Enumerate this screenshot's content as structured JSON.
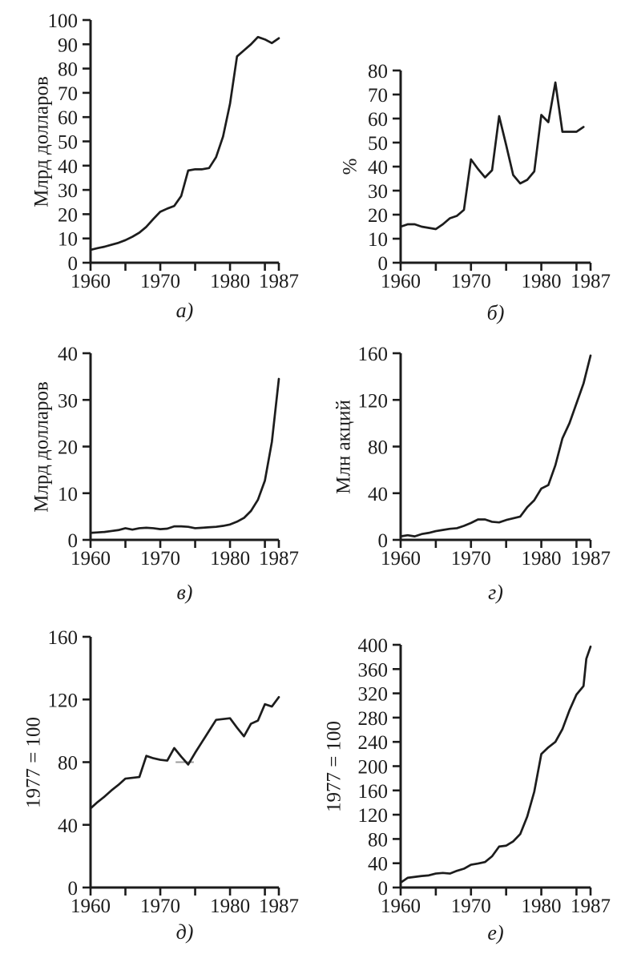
{
  "style": {
    "ink": "#1c1c1c",
    "background": "#ffffff",
    "annotation_gray": "#9b9b9b"
  },
  "chart_data": [
    {
      "id": "a",
      "type": "line",
      "label": "а)",
      "ylabel": "Млрд долларов",
      "grid": false,
      "legend": "none",
      "xlim": [
        1960,
        1987
      ],
      "ylim": [
        0,
        100
      ],
      "yticks": [
        0,
        10,
        20,
        30,
        40,
        50,
        60,
        70,
        80,
        90,
        100
      ],
      "xticks_major": [
        1960,
        1970,
        1980,
        1987
      ],
      "xticks_minor": [
        1965,
        1975,
        1985
      ],
      "x": [
        1960,
        1961,
        1962,
        1963,
        1964,
        1965,
        1966,
        1967,
        1968,
        1969,
        1970,
        1971,
        1972,
        1973,
        1974,
        1975,
        1976,
        1977,
        1978,
        1979,
        1980,
        1981,
        1982,
        1983,
        1984,
        1985,
        1986,
        1987
      ],
      "values": [
        5.3,
        6,
        6.6,
        7.4,
        8.2,
        9.3,
        10.7,
        12.4,
        14.8,
        18,
        21,
        22.3,
        23.4,
        27.5,
        38,
        38.5,
        38.5,
        39,
        43.5,
        52,
        65.5,
        85,
        87.5,
        90,
        93,
        92,
        90.5,
        92.5
      ]
    },
    {
      "id": "b",
      "type": "line",
      "label": "б)",
      "ylabel": "%",
      "grid": false,
      "legend": "none",
      "xlim": [
        1960,
        1987
      ],
      "ylim": [
        0,
        80
      ],
      "yticks": [
        0,
        10,
        20,
        30,
        40,
        50,
        60,
        70,
        80
      ],
      "xticks_major": [
        1960,
        1970,
        1980,
        1987
      ],
      "xticks_minor": [
        1965,
        1975,
        1985
      ],
      "x": [
        1960,
        1961,
        1962,
        1963,
        1964,
        1965,
        1966,
        1967,
        1968,
        1969,
        1970,
        1971,
        1972,
        1973,
        1974,
        1975,
        1976,
        1977,
        1978,
        1979,
        1980,
        1981,
        1982,
        1983,
        1984,
        1985,
        1986
      ],
      "values": [
        15,
        16,
        16,
        15,
        14.5,
        14,
        16,
        18.5,
        19.5,
        22,
        43,
        39,
        35.5,
        38.5,
        61,
        49,
        36.5,
        33,
        34.5,
        38,
        61.5,
        58.5,
        75,
        54.5,
        54.5,
        54.5,
        56.5
      ]
    },
    {
      "id": "v",
      "type": "line",
      "label": "в)",
      "ylabel": "Млрд долларов",
      "grid": false,
      "legend": "none",
      "xlim": [
        1960,
        1987
      ],
      "ylim": [
        0,
        40
      ],
      "yticks": [
        0,
        10,
        20,
        30,
        40
      ],
      "xticks_major": [
        1960,
        1970,
        1980,
        1987
      ],
      "xticks_minor": [
        1965,
        1975,
        1985
      ],
      "x": [
        1960,
        1961,
        1962,
        1963,
        1964,
        1965,
        1966,
        1967,
        1968,
        1969,
        1970,
        1971,
        1972,
        1973,
        1974,
        1975,
        1976,
        1977,
        1978,
        1979,
        1980,
        1981,
        1982,
        1983,
        1984,
        1985,
        1986,
        1987
      ],
      "values": [
        1.5,
        1.6,
        1.7,
        1.9,
        2.1,
        2.5,
        2.2,
        2.5,
        2.6,
        2.5,
        2.3,
        2.4,
        2.9,
        2.9,
        2.8,
        2.5,
        2.6,
        2.7,
        2.8,
        3,
        3.3,
        3.9,
        4.7,
        6.2,
        8.6,
        12.7,
        21,
        34.5
      ]
    },
    {
      "id": "g",
      "type": "line",
      "label": "г)",
      "ylabel": "Млн акций",
      "grid": false,
      "legend": "none",
      "xlim": [
        1960,
        1987
      ],
      "ylim": [
        0,
        160
      ],
      "yticks": [
        0,
        40,
        80,
        120,
        160
      ],
      "xticks_major": [
        1960,
        1970,
        1980,
        1987
      ],
      "xticks_minor": [
        1965,
        1975,
        1985
      ],
      "x": [
        1960,
        1961,
        1962,
        1963,
        1964,
        1965,
        1966,
        1967,
        1968,
        1969,
        1970,
        1971,
        1972,
        1973,
        1974,
        1975,
        1976,
        1977,
        1978,
        1979,
        1980,
        1981,
        1982,
        1983,
        1984,
        1985,
        1986,
        1987
      ],
      "values": [
        3,
        4,
        3,
        5,
        6,
        7.5,
        8.5,
        9.5,
        10,
        12,
        14.5,
        17.5,
        17.5,
        15.5,
        15,
        17,
        18.5,
        20,
        28,
        34,
        44,
        47,
        64,
        87,
        100,
        117,
        134,
        158
      ]
    },
    {
      "id": "d",
      "type": "line",
      "label": "д)",
      "ylabel": "1977 = 100",
      "grid": false,
      "legend": "none",
      "xlim": [
        1960,
        1987
      ],
      "ylim": [
        0,
        160
      ],
      "yticks": [
        0,
        40,
        80,
        120,
        160
      ],
      "xticks_major": [
        1960,
        1970,
        1980,
        1987
      ],
      "xticks_minor": [
        1965,
        1975,
        1985
      ],
      "x": [
        1960,
        1961,
        1962,
        1963,
        1964,
        1965,
        1966,
        1967,
        1968,
        1969,
        1970,
        1971,
        1972,
        1973,
        1974,
        1975,
        1976,
        1977,
        1978,
        1979,
        1980,
        1981,
        1982,
        1983,
        1984,
        1985,
        1986,
        1987
      ],
      "values": [
        50.5,
        54.5,
        58,
        62,
        65.5,
        69.5,
        70,
        70.5,
        84,
        82.5,
        81.5,
        81,
        89,
        83.5,
        78.5,
        86,
        93,
        100,
        107,
        107.5,
        108,
        102,
        96.5,
        104.5,
        106.5,
        117,
        115.5,
        121.5
      ],
      "annotations": [
        {
          "type": "dash",
          "x1": 1972.2,
          "x2": 1974.8,
          "y": 80,
          "color": "#9b9b9b"
        }
      ]
    },
    {
      "id": "e",
      "type": "line",
      "label": "е)",
      "ylabel": "1977 = 100",
      "grid": false,
      "legend": "none",
      "xlim": [
        1960,
        1987
      ],
      "ylim": [
        0,
        400
      ],
      "yticks": [
        0,
        40,
        80,
        120,
        160,
        200,
        240,
        280,
        320,
        360,
        400
      ],
      "xticks_major": [
        1960,
        1970,
        1980,
        1987
      ],
      "xticks_minor": [
        1965,
        1975,
        1985
      ],
      "x": [
        1960,
        1961,
        1962,
        1963,
        1964,
        1965,
        1966,
        1967,
        1968,
        1969,
        1970,
        1971,
        1972,
        1973,
        1974,
        1975,
        1976,
        1977,
        1978,
        1979,
        1980,
        1981,
        1982,
        1983,
        1984,
        1985,
        1986,
        1986.4,
        1987
      ],
      "values": [
        8,
        16,
        17.5,
        19,
        20,
        23,
        24,
        23,
        27.5,
        31,
        37.5,
        39.5,
        42,
        51.5,
        67.5,
        69,
        76,
        88,
        117,
        158,
        220,
        231,
        240,
        261,
        292,
        318,
        332,
        377,
        397
      ]
    }
  ]
}
